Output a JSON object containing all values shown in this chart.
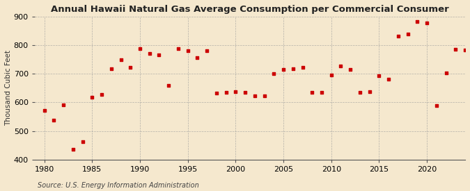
{
  "title": "Annual Hawaii Natural Gas Average Consumption per Commercial Consumer",
  "ylabel": "Thousand Cubic Feet",
  "source": "Source: U.S. Energy Information Administration",
  "xlim": [
    1979,
    2024
  ],
  "ylim": [
    400,
    900
  ],
  "yticks": [
    400,
    500,
    600,
    700,
    800,
    900
  ],
  "xticks": [
    1980,
    1985,
    1990,
    1995,
    2000,
    2005,
    2010,
    2015,
    2020
  ],
  "background_color": "#f5e8ce",
  "plot_bg_color": "#f5e8ce",
  "marker_color": "#cc0000",
  "grid_color": "#999999",
  "data": [
    [
      1980,
      573
    ],
    [
      1981,
      537
    ],
    [
      1982,
      592
    ],
    [
      1983,
      437
    ],
    [
      1984,
      462
    ],
    [
      1985,
      617
    ],
    [
      1986,
      627
    ],
    [
      1987,
      718
    ],
    [
      1988,
      750
    ],
    [
      1989,
      722
    ],
    [
      1990,
      788
    ],
    [
      1991,
      770
    ],
    [
      1992,
      765
    ],
    [
      1993,
      659
    ],
    [
      1994,
      788
    ],
    [
      1995,
      780
    ],
    [
      1996,
      757
    ],
    [
      1997,
      780
    ],
    [
      1998,
      633
    ],
    [
      1999,
      635
    ],
    [
      2000,
      637
    ],
    [
      2001,
      635
    ],
    [
      2002,
      623
    ],
    [
      2003,
      622
    ],
    [
      2004,
      700
    ],
    [
      2005,
      715
    ],
    [
      2006,
      718
    ],
    [
      2007,
      722
    ],
    [
      2008,
      635
    ],
    [
      2009,
      635
    ],
    [
      2010,
      695
    ],
    [
      2011,
      728
    ],
    [
      2012,
      715
    ],
    [
      2013,
      635
    ],
    [
      2014,
      637
    ],
    [
      2015,
      693
    ],
    [
      2016,
      680
    ],
    [
      2017,
      832
    ],
    [
      2018,
      838
    ],
    [
      2019,
      882
    ],
    [
      2020,
      877
    ],
    [
      2021,
      590
    ],
    [
      2022,
      703
    ],
    [
      2023,
      785
    ],
    [
      2024,
      783
    ]
  ]
}
